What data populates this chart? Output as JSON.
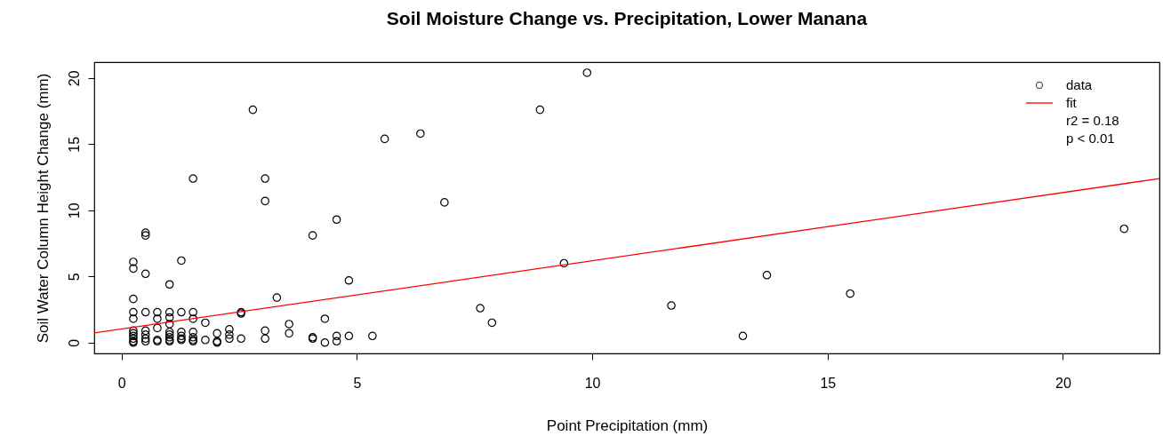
{
  "chart_data": {
    "type": "scatter",
    "title": "Soil Moisture Change vs. Precipitation, Lower Manana",
    "xlabel": "Point Precipitation (mm)",
    "ylabel": "Soil Water Column Height Change (mm)",
    "xlim": [
      -0.58,
      22.05
    ],
    "ylim": [
      -0.82,
      21.2
    ],
    "xticks": [
      0,
      5,
      10,
      15,
      20
    ],
    "yticks": [
      0,
      5,
      10,
      15,
      20
    ],
    "legend": "top right",
    "annotations": [
      "r2 = 0.18",
      "p < 0.01"
    ],
    "series": [
      {
        "name": "data",
        "marker": "circle",
        "color": "#000000",
        "x": [
          0.25,
          0.25,
          0.25,
          0.25,
          0.25,
          0.25,
          0.25,
          0.25,
          0.25,
          0.25,
          0.25,
          0.51,
          0.51,
          0.51,
          0.51,
          0.51,
          0.51,
          0.51,
          0.51,
          0.76,
          0.76,
          0.76,
          0.76,
          0.76,
          1.02,
          1.02,
          1.02,
          1.02,
          1.02,
          1.02,
          1.02,
          1.02,
          1.02,
          1.27,
          1.27,
          1.27,
          1.27,
          1.27,
          1.27,
          1.52,
          1.52,
          1.52,
          1.52,
          1.52,
          1.52,
          1.52,
          1.78,
          1.78,
          2.03,
          2.03,
          2.03,
          2.29,
          2.29,
          2.29,
          2.54,
          2.54,
          2.54,
          2.79,
          3.05,
          3.05,
          3.05,
          3.05,
          3.3,
          3.56,
          3.56,
          4.06,
          4.06,
          4.06,
          4.32,
          4.32,
          4.57,
          4.57,
          4.57,
          4.83,
          4.83,
          5.33,
          5.59,
          6.35,
          6.86,
          7.62,
          7.87,
          8.89,
          9.4,
          9.89,
          11.68,
          13.2,
          13.71,
          15.48,
          21.3
        ],
        "values": [
          6.1,
          5.6,
          3.3,
          2.3,
          1.8,
          0.9,
          0.7,
          0.5,
          0.3,
          0.1,
          0,
          8.3,
          8.1,
          5.2,
          2.3,
          0.9,
          0.6,
          0.3,
          0.1,
          2.3,
          1.8,
          1.1,
          0.2,
          0.1,
          4.4,
          2.3,
          1.9,
          1.4,
          0.8,
          0.6,
          0.4,
          0.2,
          0.1,
          6.2,
          2.3,
          0.8,
          0.5,
          0.3,
          0.2,
          12.4,
          2.3,
          1.8,
          0.8,
          0.4,
          0.2,
          0.1,
          1.5,
          0.2,
          0.7,
          0.1,
          0,
          1.0,
          0.6,
          0.3,
          2.3,
          2.2,
          0.3,
          17.6,
          12.4,
          10.7,
          0.9,
          0.3,
          3.4,
          1.4,
          0.7,
          8.1,
          0.4,
          0.3,
          1.8,
          0,
          9.3,
          0.5,
          0.1,
          4.7,
          0.5,
          0.5,
          15.4,
          15.8,
          10.6,
          2.6,
          1.5,
          17.6,
          6.0,
          20.4,
          2.8,
          0.5,
          5.1,
          3.7,
          8.6
        ]
      },
      {
        "name": "fit",
        "type": "line",
        "color": "#ff0000",
        "x": [
          -0.58,
          22.05
        ],
        "values": [
          0.73,
          12.4
        ]
      }
    ]
  }
}
